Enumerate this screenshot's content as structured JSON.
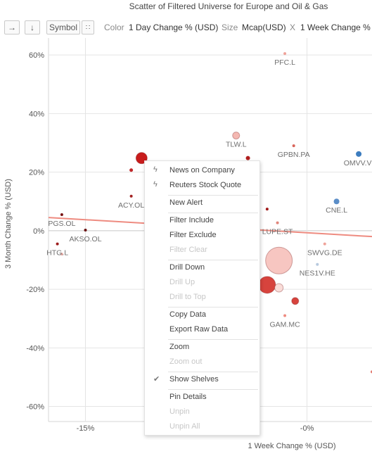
{
  "title": "Scatter of Filtered Universe for Europe and Oil & Gas",
  "toolbar": {
    "symbol_label": "Symbol",
    "color_label": "Color",
    "color_value": "1 Day Change % (USD)",
    "size_label": "Size",
    "size_value": "Mcap(USD)",
    "x_label": "X",
    "x_value": "1 Week Change %"
  },
  "colors": {
    "negative_dark": "#b01e1e",
    "negative_light": "#f4b8b2",
    "positive": "#3d7dbf",
    "trendline": "#ee8b80",
    "gridline": "#e4e4e4"
  },
  "chart_data": {
    "type": "scatter",
    "xlabel": "1 Week Change % (USD)",
    "ylabel": "3 Month Change % (USD)",
    "xlim": [
      -17.5,
      4.4
    ],
    "ylim": [
      -61,
      63
    ],
    "x_ticks": [
      -15,
      0
    ],
    "x_tick_labels": [
      "-15%",
      "-0%"
    ],
    "y_ticks": [
      60,
      40,
      20,
      0,
      -20,
      -40,
      -60
    ],
    "y_tick_labels": [
      "60%",
      "40%",
      "20%",
      "0%",
      "-20%",
      "-40%",
      "-60%"
    ],
    "grid": true,
    "trendline": {
      "x": [
        -17.5,
        4.4
      ],
      "y": [
        4.5,
        -2.0
      ]
    },
    "points": [
      {
        "label": "PFC.L",
        "x": -1.5,
        "y": 60.5,
        "size": 2,
        "color": "#f0a39a"
      },
      {
        "label": "TLW.L",
        "x": -4.8,
        "y": 32.5,
        "size": 5,
        "color": "#f4b8b2"
      },
      {
        "label": "GPBN.PA",
        "x": -0.9,
        "y": 29.0,
        "size": 2,
        "color": "#d9655a"
      },
      {
        "label": "OMVV.VI",
        "x": 3.5,
        "y": 26.2,
        "size": 4,
        "color": "#3d7dbf"
      },
      {
        "label": "",
        "x": -11.2,
        "y": 24.8,
        "size": 8,
        "color": "#c81c1c"
      },
      {
        "label": "",
        "x": -4.0,
        "y": 24.8,
        "size": 3,
        "color": "#b01e1e"
      },
      {
        "label": "",
        "x": -11.9,
        "y": 20.7,
        "size": 2.5,
        "color": "#c0282b"
      },
      {
        "label": "ACY.OL",
        "x": -11.9,
        "y": 11.8,
        "size": 2,
        "color": "#a32222"
      },
      {
        "label": "CNE.L",
        "x": 2.0,
        "y": 10.0,
        "size": 4,
        "color": "#5b8ec8"
      },
      {
        "label": "PGS.OL",
        "x": -16.6,
        "y": 5.5,
        "size": 2,
        "color": "#7a1515"
      },
      {
        "label": "",
        "x": -2.7,
        "y": 7.4,
        "size": 2,
        "color": "#a01818"
      },
      {
        "label": "LUPE.ST",
        "x": -2.0,
        "y": 2.7,
        "size": 2,
        "color": "#e0857b"
      },
      {
        "label": "AKSO.OL",
        "x": -15.0,
        "y": 0.2,
        "size": 2,
        "color": "#6a1010"
      },
      {
        "label": "HTG.L",
        "x": -16.9,
        "y": -4.5,
        "size": 2,
        "color": "#9d1d1d"
      },
      {
        "label": "",
        "x": -16.6,
        "y": -8.0,
        "size": 2,
        "color": "#f0b0aa"
      },
      {
        "label": "SWVG.DE",
        "x": 1.2,
        "y": -4.5,
        "size": 2,
        "color": "#f0a39a"
      },
      {
        "label": "",
        "x": -1.9,
        "y": -10.2,
        "size": 19,
        "color": "#f7c6c1"
      },
      {
        "label": "NES1V.HE",
        "x": 0.7,
        "y": -11.5,
        "size": 2,
        "color": "#b7c9de"
      },
      {
        "label": "",
        "x": -2.7,
        "y": -18.5,
        "size": 12,
        "color": "#d7433d"
      },
      {
        "label": "",
        "x": -1.9,
        "y": -19.5,
        "size": 6,
        "color": "#f9dcd8"
      },
      {
        "label": "",
        "x": -0.8,
        "y": -24.0,
        "size": 5,
        "color": "#d7433d"
      },
      {
        "label": "GAM.MC",
        "x": -1.5,
        "y": -29.0,
        "size": 2,
        "color": "#ee8b80"
      },
      {
        "label": "",
        "x": 4.4,
        "y": -48.2,
        "size": 2,
        "color": "#e37b72"
      }
    ]
  },
  "context_menu": {
    "items": [
      {
        "label": "News on Company",
        "icon": "bolt-icon",
        "enabled": true
      },
      {
        "label": "Reuters Stock Quote",
        "icon": "bolt-icon",
        "enabled": true
      },
      {
        "sep": true
      },
      {
        "label": "New Alert",
        "enabled": true
      },
      {
        "sep": true
      },
      {
        "label": "Filter Include",
        "enabled": true
      },
      {
        "label": "Filter Exclude",
        "enabled": true
      },
      {
        "label": "Filter Clear",
        "enabled": false
      },
      {
        "sep": true
      },
      {
        "label": "Drill Down",
        "enabled": true
      },
      {
        "label": "Drill Up",
        "enabled": false
      },
      {
        "label": "Drill to Top",
        "enabled": false
      },
      {
        "sep": true
      },
      {
        "label": "Copy Data",
        "enabled": true
      },
      {
        "label": "Export Raw Data",
        "enabled": true
      },
      {
        "sep": true
      },
      {
        "label": "Zoom",
        "enabled": true
      },
      {
        "label": "Zoom out",
        "enabled": false
      },
      {
        "sep": true
      },
      {
        "label": "Show Shelves",
        "icon": "checkmark-icon",
        "enabled": true
      },
      {
        "sep": true
      },
      {
        "label": "Pin Details",
        "enabled": true
      },
      {
        "label": "Unpin",
        "enabled": false
      },
      {
        "label": "Unpin All",
        "enabled": false
      }
    ]
  }
}
